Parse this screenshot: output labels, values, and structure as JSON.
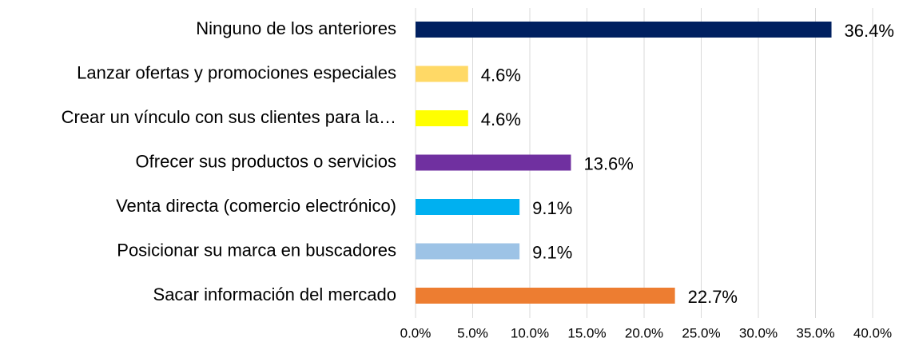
{
  "chart_data": {
    "type": "bar",
    "orientation": "horizontal",
    "categories": [
      "Ninguno de los anteriores",
      "Lanzar ofertas y promociones especiales",
      "Crear un vínculo con sus clientes para la…",
      "Ofrecer sus productos o servicios",
      "Venta directa (comercio electrónico)",
      "Posicionar su marca en buscadores",
      "Sacar información del mercado"
    ],
    "values": [
      36.4,
      4.6,
      4.6,
      13.6,
      9.1,
      9.1,
      22.7
    ],
    "value_labels": [
      "36.4%",
      "4.6%",
      "4.6%",
      "13.6%",
      "9.1%",
      "9.1%",
      "22.7%"
    ],
    "colors": [
      "#002060",
      "#ffd966",
      "#ffff00",
      "#7030a0",
      "#00b0f0",
      "#9dc3e6",
      "#ed7d31"
    ],
    "xlim": [
      0,
      40
    ],
    "xticks": [
      {
        "value": 0,
        "label": "0.0%"
      },
      {
        "value": 5,
        "label": "5.0%"
      },
      {
        "value": 10,
        "label": "10.0%"
      },
      {
        "value": 15,
        "label": "15.0%"
      },
      {
        "value": 20,
        "label": "20.0%"
      },
      {
        "value": 25,
        "label": "25.0%"
      },
      {
        "value": 30,
        "label": "30.0%"
      },
      {
        "value": 35,
        "label": "35.0%"
      },
      {
        "value": 40,
        "label": "40.0%"
      }
    ],
    "grid": true
  }
}
